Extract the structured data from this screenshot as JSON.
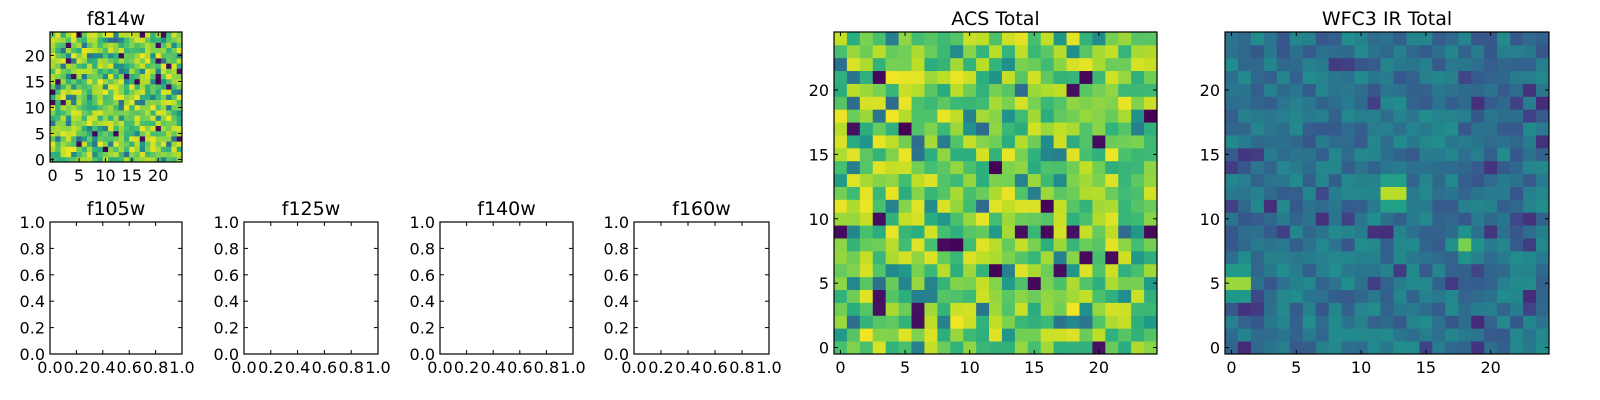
{
  "figure": {
    "description": "Grid of image panels: one small f814w cutout, four empty WFC3 IR filter panels, and two large total images"
  },
  "chart_data": [
    {
      "type": "heatmap",
      "title": "f814w",
      "grid_size": [
        25,
        25
      ],
      "xlim": [
        -0.5,
        24.5
      ],
      "ylim": [
        -0.5,
        24.5
      ],
      "x_ticks": [
        0,
        5,
        10,
        15,
        20
      ],
      "x_tick_labels": [
        "0",
        "5",
        "10",
        "15",
        "20"
      ],
      "y_ticks": [
        0,
        5,
        10,
        15,
        20
      ],
      "y_tick_labels": [
        "0",
        "5",
        "10",
        "15",
        "20"
      ],
      "colormap": "viridis",
      "pattern": "noise",
      "seed": 11
    },
    {
      "type": "empty",
      "title": "f105w",
      "xlim": [
        0,
        1
      ],
      "ylim": [
        0,
        1
      ],
      "x_ticks": [
        0,
        0.2,
        0.4,
        0.6,
        0.8,
        1.0
      ],
      "x_tick_labels": [
        "0.0",
        "0.2",
        "0.4",
        "0.6",
        "0.8",
        "1.0"
      ],
      "y_ticks": [
        0,
        0.2,
        0.4,
        0.6,
        0.8,
        1.0
      ],
      "y_tick_labels": [
        "0.0",
        "0.2",
        "0.4",
        "0.6",
        "0.8",
        "1.0"
      ]
    },
    {
      "type": "empty",
      "title": "f125w",
      "xlim": [
        0,
        1
      ],
      "ylim": [
        0,
        1
      ],
      "x_ticks": [
        0,
        0.2,
        0.4,
        0.6,
        0.8,
        1.0
      ],
      "x_tick_labels": [
        "0.0",
        "0.2",
        "0.4",
        "0.6",
        "0.8",
        "1.0"
      ],
      "y_ticks": [
        0,
        0.2,
        0.4,
        0.6,
        0.8,
        1.0
      ],
      "y_tick_labels": [
        "0.0",
        "0.2",
        "0.4",
        "0.6",
        "0.8",
        "1.0"
      ]
    },
    {
      "type": "empty",
      "title": "f140w",
      "xlim": [
        0,
        1
      ],
      "ylim": [
        0,
        1
      ],
      "x_ticks": [
        0,
        0.2,
        0.4,
        0.6,
        0.8,
        1.0
      ],
      "x_tick_labels": [
        "0.0",
        "0.2",
        "0.4",
        "0.6",
        "0.8",
        "1.0"
      ],
      "y_ticks": [
        0,
        0.2,
        0.4,
        0.6,
        0.8,
        1.0
      ],
      "y_tick_labels": [
        "0.0",
        "0.2",
        "0.4",
        "0.6",
        "0.8",
        "1.0"
      ]
    },
    {
      "type": "empty",
      "title": "f160w",
      "xlim": [
        0,
        1
      ],
      "ylim": [
        0,
        1
      ],
      "x_ticks": [
        0,
        0.2,
        0.4,
        0.6,
        0.8,
        1.0
      ],
      "x_tick_labels": [
        "0.0",
        "0.2",
        "0.4",
        "0.6",
        "0.8",
        "1.0"
      ],
      "y_ticks": [
        0,
        0.2,
        0.4,
        0.6,
        0.8,
        1.0
      ],
      "y_tick_labels": [
        "0.0",
        "0.2",
        "0.4",
        "0.6",
        "0.8",
        "1.0"
      ]
    },
    {
      "type": "heatmap",
      "title": "ACS Total",
      "grid_size": [
        25,
        25
      ],
      "xlim": [
        -0.5,
        24.5
      ],
      "ylim": [
        -0.5,
        24.5
      ],
      "x_ticks": [
        0,
        5,
        10,
        15,
        20
      ],
      "x_tick_labels": [
        "0",
        "5",
        "10",
        "15",
        "20"
      ],
      "y_ticks": [
        0,
        5,
        10,
        15,
        20
      ],
      "y_tick_labels": [
        "0",
        "5",
        "10",
        "15",
        "20"
      ],
      "colormap": "viridis",
      "pattern": "noise",
      "seed": 23
    },
    {
      "type": "heatmap",
      "title": "WFC3 IR Total",
      "grid_size": [
        25,
        25
      ],
      "xlim": [
        -0.5,
        24.5
      ],
      "ylim": [
        -0.5,
        24.5
      ],
      "x_ticks": [
        0,
        5,
        10,
        15,
        20
      ],
      "x_tick_labels": [
        "0",
        "5",
        "10",
        "15",
        "20"
      ],
      "y_ticks": [
        0,
        5,
        10,
        15,
        20
      ],
      "y_tick_labels": [
        "0",
        "5",
        "10",
        "15",
        "20"
      ],
      "colormap": "viridis",
      "pattern": "ir",
      "seed": 37,
      "bright_sources": [
        {
          "x": 12.5,
          "y": 12.0,
          "value": 1.0
        },
        {
          "x": 0.5,
          "y": 5.0,
          "value": 0.95
        },
        {
          "x": 18.0,
          "y": 8.0,
          "value": 0.8
        }
      ]
    }
  ]
}
